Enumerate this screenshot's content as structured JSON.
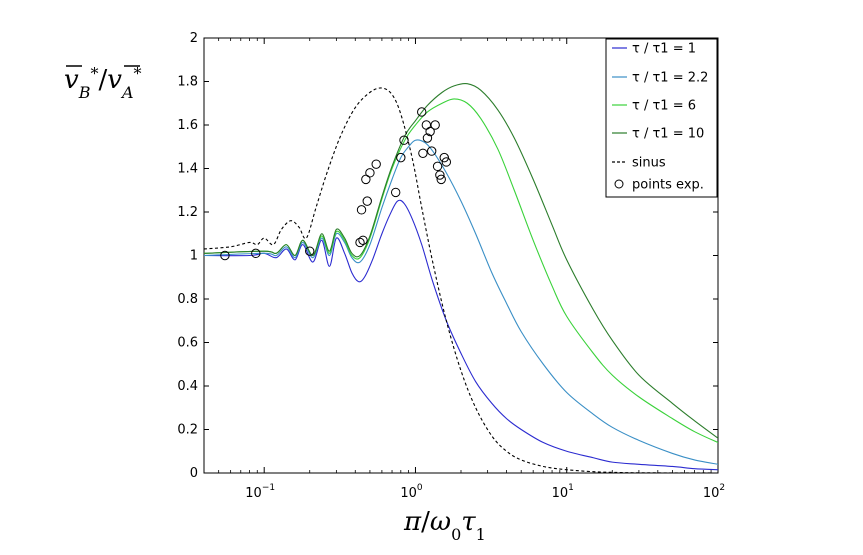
{
  "chart_data": {
    "type": "line",
    "xscale": "log",
    "xlim": [
      0.04,
      100
    ],
    "ylim": [
      0,
      2
    ],
    "xlabel": "π/ω0τ1",
    "ylabel": "v̄B*/v̄A*",
    "grid": false,
    "legend_position": "top-right",
    "x_ticks": [
      {
        "value": 0.1,
        "base": "10",
        "exp": "−1"
      },
      {
        "value": 1,
        "base": "10",
        "exp": "0"
      },
      {
        "value": 10,
        "base": "10",
        "exp": "1"
      },
      {
        "value": 100,
        "base": "10",
        "exp": "2"
      }
    ],
    "y_ticks": [
      {
        "value": 0,
        "label": "0"
      },
      {
        "value": 0.2,
        "label": "0.2"
      },
      {
        "value": 0.4,
        "label": "0.4"
      },
      {
        "value": 0.6,
        "label": "0.6"
      },
      {
        "value": 0.8,
        "label": "0.8"
      },
      {
        "value": 1,
        "label": "1"
      },
      {
        "value": 1.2,
        "label": "1.2"
      },
      {
        "value": 1.4,
        "label": "1.4"
      },
      {
        "value": 1.6,
        "label": "1.6"
      },
      {
        "value": 1.8,
        "label": "1.8"
      },
      {
        "value": 2,
        "label": "2"
      }
    ],
    "series": [
      {
        "name": "τ / τ1 = 1",
        "color": "#2b2bd0",
        "style": "solid",
        "points": [
          [
            0.04,
            1.0
          ],
          [
            0.08,
            1.0
          ],
          [
            0.1,
            1.01
          ],
          [
            0.12,
            0.99
          ],
          [
            0.14,
            1.03
          ],
          [
            0.16,
            0.98
          ],
          [
            0.18,
            1.05
          ],
          [
            0.21,
            0.97
          ],
          [
            0.24,
            1.07
          ],
          [
            0.27,
            0.95
          ],
          [
            0.3,
            1.08
          ],
          [
            0.34,
            1.01
          ],
          [
            0.38,
            0.92
          ],
          [
            0.42,
            0.88
          ],
          [
            0.46,
            0.9
          ],
          [
            0.52,
            0.98
          ],
          [
            0.6,
            1.1
          ],
          [
            0.68,
            1.19
          ],
          [
            0.76,
            1.25
          ],
          [
            0.84,
            1.24
          ],
          [
            0.95,
            1.17
          ],
          [
            1.1,
            1.05
          ],
          [
            1.3,
            0.88
          ],
          [
            1.6,
            0.7
          ],
          [
            2.0,
            0.55
          ],
          [
            2.5,
            0.42
          ],
          [
            3.2,
            0.32
          ],
          [
            4.0,
            0.25
          ],
          [
            5.0,
            0.2
          ],
          [
            7.0,
            0.14
          ],
          [
            10,
            0.1
          ],
          [
            15,
            0.07
          ],
          [
            20,
            0.05
          ],
          [
            30,
            0.04
          ],
          [
            50,
            0.03
          ],
          [
            70,
            0.02
          ],
          [
            100,
            0.015
          ]
        ]
      },
      {
        "name": "τ / τ1 = 2.2",
        "color": "#3a8fc6",
        "style": "solid",
        "points": [
          [
            0.04,
            1.0
          ],
          [
            0.1,
            1.01
          ],
          [
            0.12,
            1.0
          ],
          [
            0.14,
            1.04
          ],
          [
            0.16,
            0.99
          ],
          [
            0.18,
            1.06
          ],
          [
            0.21,
            0.99
          ],
          [
            0.24,
            1.08
          ],
          [
            0.27,
            1.0
          ],
          [
            0.3,
            1.1
          ],
          [
            0.34,
            1.06
          ],
          [
            0.38,
            0.99
          ],
          [
            0.43,
            0.97
          ],
          [
            0.5,
            1.05
          ],
          [
            0.6,
            1.22
          ],
          [
            0.7,
            1.35
          ],
          [
            0.8,
            1.45
          ],
          [
            0.9,
            1.5
          ],
          [
            1.0,
            1.53
          ],
          [
            1.15,
            1.52
          ],
          [
            1.3,
            1.48
          ],
          [
            1.6,
            1.38
          ],
          [
            2.0,
            1.25
          ],
          [
            2.5,
            1.1
          ],
          [
            3.2,
            0.92
          ],
          [
            4.0,
            0.78
          ],
          [
            5.0,
            0.65
          ],
          [
            7.0,
            0.5
          ],
          [
            10,
            0.37
          ],
          [
            15,
            0.27
          ],
          [
            20,
            0.21
          ],
          [
            30,
            0.15
          ],
          [
            50,
            0.09
          ],
          [
            70,
            0.06
          ],
          [
            100,
            0.04
          ]
        ]
      },
      {
        "name": "τ / τ1 = 6",
        "color": "#3ad23a",
        "style": "solid",
        "points": [
          [
            0.04,
            1.01
          ],
          [
            0.1,
            1.02
          ],
          [
            0.12,
            1.01
          ],
          [
            0.14,
            1.05
          ],
          [
            0.16,
            1.0
          ],
          [
            0.18,
            1.07
          ],
          [
            0.21,
            1.0
          ],
          [
            0.24,
            1.09
          ],
          [
            0.27,
            1.01
          ],
          [
            0.3,
            1.11
          ],
          [
            0.34,
            1.07
          ],
          [
            0.38,
            1.0
          ],
          [
            0.43,
            0.99
          ],
          [
            0.5,
            1.08
          ],
          [
            0.6,
            1.26
          ],
          [
            0.7,
            1.4
          ],
          [
            0.85,
            1.53
          ],
          [
            1.0,
            1.6
          ],
          [
            1.2,
            1.66
          ],
          [
            1.5,
            1.7
          ],
          [
            1.8,
            1.72
          ],
          [
            2.2,
            1.7
          ],
          [
            2.7,
            1.63
          ],
          [
            3.5,
            1.49
          ],
          [
            4.5,
            1.3
          ],
          [
            6.0,
            1.07
          ],
          [
            8.0,
            0.86
          ],
          [
            10,
            0.72
          ],
          [
            15,
            0.55
          ],
          [
            20,
            0.45
          ],
          [
            30,
            0.35
          ],
          [
            50,
            0.25
          ],
          [
            70,
            0.19
          ],
          [
            100,
            0.14
          ]
        ]
      },
      {
        "name": "τ / τ1 = 10",
        "color": "#2c7d2c",
        "style": "solid",
        "points": [
          [
            0.04,
            1.01
          ],
          [
            0.1,
            1.02
          ],
          [
            0.12,
            1.01
          ],
          [
            0.14,
            1.05
          ],
          [
            0.16,
            1.0
          ],
          [
            0.18,
            1.07
          ],
          [
            0.21,
            1.0
          ],
          [
            0.24,
            1.1
          ],
          [
            0.27,
            1.02
          ],
          [
            0.3,
            1.12
          ],
          [
            0.34,
            1.08
          ],
          [
            0.38,
            1.01
          ],
          [
            0.43,
            1.0
          ],
          [
            0.5,
            1.09
          ],
          [
            0.6,
            1.27
          ],
          [
            0.7,
            1.41
          ],
          [
            0.85,
            1.55
          ],
          [
            1.0,
            1.62
          ],
          [
            1.2,
            1.69
          ],
          [
            1.5,
            1.75
          ],
          [
            1.8,
            1.78
          ],
          [
            2.2,
            1.79
          ],
          [
            2.7,
            1.76
          ],
          [
            3.5,
            1.67
          ],
          [
            4.5,
            1.54
          ],
          [
            6.0,
            1.35
          ],
          [
            8.0,
            1.14
          ],
          [
            10,
            0.98
          ],
          [
            15,
            0.75
          ],
          [
            20,
            0.61
          ],
          [
            30,
            0.45
          ],
          [
            50,
            0.32
          ],
          [
            70,
            0.24
          ],
          [
            100,
            0.16
          ]
        ]
      },
      {
        "name": "sinus",
        "color": "#000000",
        "style": "dashed",
        "points": [
          [
            0.04,
            1.03
          ],
          [
            0.06,
            1.04
          ],
          [
            0.08,
            1.06
          ],
          [
            0.09,
            1.05
          ],
          [
            0.1,
            1.08
          ],
          [
            0.115,
            1.05
          ],
          [
            0.13,
            1.12
          ],
          [
            0.15,
            1.16
          ],
          [
            0.17,
            1.13
          ],
          [
            0.19,
            1.08
          ],
          [
            0.22,
            1.22
          ],
          [
            0.26,
            1.38
          ],
          [
            0.32,
            1.55
          ],
          [
            0.4,
            1.68
          ],
          [
            0.5,
            1.75
          ],
          [
            0.6,
            1.77
          ],
          [
            0.7,
            1.74
          ],
          [
            0.8,
            1.65
          ],
          [
            0.95,
            1.45
          ],
          [
            1.1,
            1.22
          ],
          [
            1.3,
            0.97
          ],
          [
            1.6,
            0.7
          ],
          [
            2.0,
            0.47
          ],
          [
            2.5,
            0.3
          ],
          [
            3.2,
            0.17
          ],
          [
            4.0,
            0.1
          ],
          [
            5.0,
            0.06
          ],
          [
            7.0,
            0.03
          ],
          [
            10,
            0.015
          ],
          [
            15,
            0.006
          ],
          [
            20,
            0.003
          ],
          [
            30,
            0.001
          ],
          [
            100,
            0.0
          ]
        ]
      }
    ],
    "scatter": {
      "name": "points exp.",
      "marker": "circle",
      "points": [
        [
          0.055,
          1.0
        ],
        [
          0.088,
          1.01
        ],
        [
          0.2,
          1.02
        ],
        [
          0.43,
          1.06
        ],
        [
          0.45,
          1.07
        ],
        [
          0.44,
          1.21
        ],
        [
          0.47,
          1.35
        ],
        [
          0.5,
          1.38
        ],
        [
          0.55,
          1.42
        ],
        [
          0.48,
          1.25
        ],
        [
          0.74,
          1.29
        ],
        [
          0.8,
          1.45
        ],
        [
          0.84,
          1.53
        ],
        [
          1.1,
          1.66
        ],
        [
          1.18,
          1.6
        ],
        [
          1.12,
          1.47
        ],
        [
          1.2,
          1.54
        ],
        [
          1.25,
          1.57
        ],
        [
          1.35,
          1.6
        ],
        [
          1.28,
          1.48
        ],
        [
          1.4,
          1.41
        ],
        [
          1.45,
          1.37
        ],
        [
          1.48,
          1.35
        ],
        [
          1.55,
          1.45
        ],
        [
          1.6,
          1.43
        ]
      ]
    }
  }
}
